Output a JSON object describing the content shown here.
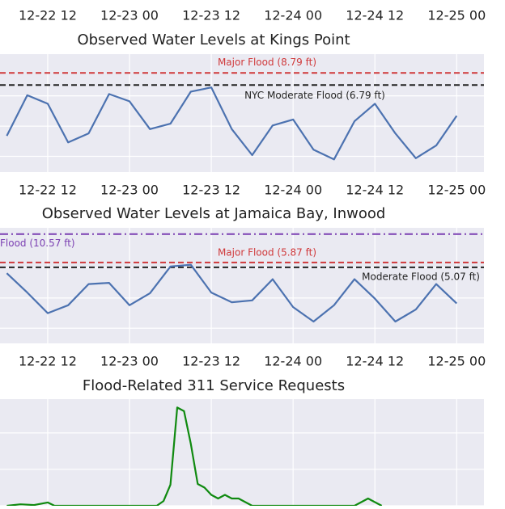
{
  "chart_data": [
    {
      "type": "axis",
      "xlim": [
        "12-22 05",
        "12-25 04"
      ],
      "xticks": [
        "12-22 12",
        "12-23 00",
        "12-23 12",
        "12-24 00",
        "12-24 12",
        "12-25 00"
      ]
    },
    {
      "type": "line",
      "title": "Observed Water Levels at Kings Point",
      "color": "#4c72b0",
      "xlim": [
        "12-22 05",
        "12-25 04"
      ],
      "xticks": [
        "12-22 12",
        "12-23 00",
        "12-23 12",
        "12-24 00",
        "12-24 12",
        "12-25 00"
      ],
      "ylim": [
        -7.6,
        11.9
      ],
      "yticks": [
        -5,
        0,
        5
      ],
      "grid": true,
      "x": [
        "12-22 06",
        "12-22 09",
        "12-22 12",
        "12-22 15",
        "12-22 18",
        "12-22 21",
        "12-23 00",
        "12-23 03",
        "12-23 06",
        "12-23 09",
        "12-23 12",
        "12-23 15",
        "12-23 18",
        "12-23 21",
        "12-24 00",
        "12-24 03",
        "12-24 06",
        "12-24 09",
        "12-24 12",
        "12-24 15",
        "12-24 18",
        "12-24 21",
        "12-25 00"
      ],
      "values": [
        -1.6,
        5.1,
        3.7,
        -2.7,
        -1.2,
        5.3,
        4.1,
        -0.5,
        0.4,
        5.7,
        6.4,
        -0.5,
        -4.8,
        0.1,
        1.1,
        -3.9,
        -5.5,
        0.8,
        3.7,
        -1.2,
        -5.3,
        -3.2,
        1.7
      ],
      "thresholds": [
        {
          "label": "Major Flood (8.79 ft)",
          "value": 8.79,
          "color": "#d0393b",
          "style": "dashed"
        },
        {
          "label": "NYC Moderate Flood (6.79 ft)",
          "value": 6.79,
          "color": "#222222",
          "style": "dashed"
        }
      ]
    },
    {
      "type": "line",
      "title": "Observed Water Levels at Jamaica Bay, Inwood",
      "color": "#4c72b0",
      "xlim": [
        "12-22 05",
        "12-25 04"
      ],
      "xticks": [
        "12-22 12",
        "12-23 00",
        "12-23 12",
        "12-24 00",
        "12-24 12",
        "12-25 00"
      ],
      "ylim": [
        -7.5,
        11.6
      ],
      "yticks": [
        -5,
        0,
        5
      ],
      "grid": true,
      "x": [
        "12-22 06",
        "12-22 09",
        "12-22 12",
        "12-22 15",
        "12-22 18",
        "12-22 21",
        "12-23 00",
        "12-23 03",
        "12-23 06",
        "12-23 09",
        "12-23 12",
        "12-23 15",
        "12-23 18",
        "12-23 21",
        "12-24 00",
        "12-24 03",
        "12-24 06",
        "12-24 09",
        "12-24 12",
        "12-24 15",
        "12-24 18",
        "12-24 21",
        "12-25 00"
      ],
      "values": [
        4.1,
        0.9,
        -2.5,
        -1.2,
        2.3,
        2.5,
        -1.2,
        0.8,
        5.2,
        5.5,
        0.9,
        -0.7,
        -0.4,
        3.1,
        -1.5,
        -3.9,
        -1.2,
        3.1,
        -0.1,
        -3.9,
        -1.9,
        2.3,
        -0.9
      ],
      "thresholds": [
        {
          "label": "Flood (10.57 ft)",
          "value": 10.57,
          "color": "#7b3fb2",
          "style": "dashdot"
        },
        {
          "label": "Major Flood (5.87 ft)",
          "value": 5.87,
          "color": "#d0393b",
          "style": "dashed"
        },
        {
          "label": "Moderate Flood (5.07 ft)",
          "value": 5.07,
          "color": "#222222",
          "style": "dashed"
        }
      ]
    },
    {
      "type": "line",
      "title": "Flood-Related 311 Service Requests",
      "color": "#108a10",
      "xlim": [
        "12-22 05",
        "12-25 04"
      ],
      "xticks": [
        "12-22 12",
        "12-23 00",
        "12-23 12",
        "12-24 00",
        "12-24 12",
        "12-25 00"
      ],
      "ylim": [
        0,
        29.3
      ],
      "yticks": [
        0,
        10,
        20
      ],
      "grid": true,
      "x": [
        "12-22 06",
        "12-22 08",
        "12-22 10",
        "12-22 12",
        "12-22 13",
        "12-23 04",
        "12-23 05",
        "12-23 06",
        "12-23 07",
        "12-23 08",
        "12-23 09",
        "12-23 10",
        "12-23 11",
        "12-23 12",
        "12-23 13",
        "12-23 14",
        "12-23 15",
        "12-23 16",
        "12-23 17",
        "12-23 18",
        "12-24 09",
        "12-24 10",
        "12-24 11",
        "12-24 12",
        "12-24 13"
      ],
      "values": [
        0,
        0.4,
        0.2,
        0.9,
        0,
        0,
        1.3,
        5.8,
        27,
        26,
        17,
        6,
        5,
        3,
        2,
        3,
        2,
        2,
        1,
        0,
        0,
        1,
        2,
        1,
        0
      ]
    }
  ]
}
